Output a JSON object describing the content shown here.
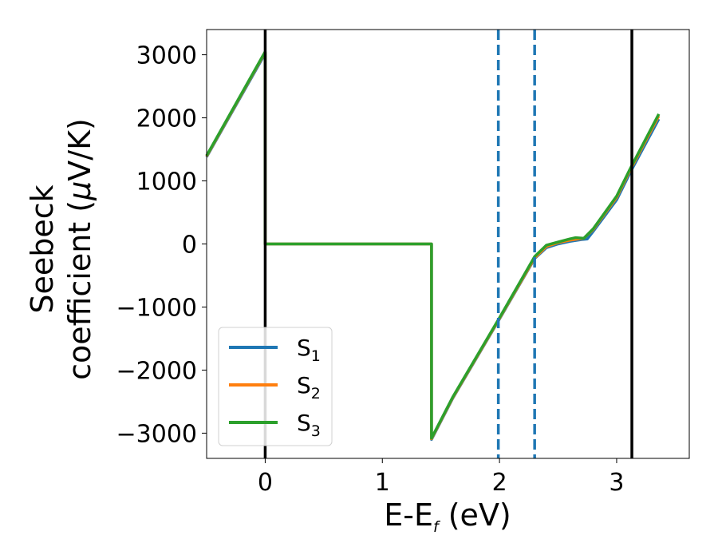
{
  "chart_data": {
    "type": "line",
    "xlabel": {
      "main": "E-E",
      "sub": "f",
      "unit": " (eV)"
    },
    "ylabel": {
      "line1": "Seebeck",
      "line2": "coefficient  (",
      "mu": "μ",
      "unit": "V/K)"
    },
    "xlim": [
      -0.5,
      3.62
    ],
    "ylim": [
      -3400,
      3400
    ],
    "xticks": [
      0,
      1,
      2,
      3
    ],
    "yticks": [
      3000,
      2000,
      1000,
      0,
      -1000,
      -2000,
      -3000
    ],
    "ytick_labels": [
      "3000",
      "2000",
      "1000",
      "0",
      "−1000",
      "−2000",
      "−3000"
    ],
    "xtick_labels": [
      "0",
      "1",
      "2",
      "3"
    ],
    "grid": false,
    "legend": "lower-left",
    "series": [
      {
        "name": "S",
        "sub": "1",
        "color": "#1f77b4",
        "x": [
          -0.5,
          0.0,
          0.0,
          1.42,
          1.42,
          1.6,
          2.0,
          2.3,
          2.4,
          2.5,
          2.6,
          2.7,
          2.75,
          2.8,
          3.0,
          3.12,
          3.36
        ],
        "y": [
          1380,
          3020,
          0,
          0,
          -3100,
          -2450,
          -1190,
          -230,
          -60,
          0,
          40,
          70,
          80,
          200,
          700,
          1150,
          1980
        ]
      },
      {
        "name": "S",
        "sub": "2",
        "color": "#ff7f0e",
        "x": [
          -0.5,
          0.0,
          0.0,
          1.42,
          1.42,
          1.6,
          2.0,
          2.3,
          2.4,
          2.5,
          2.6,
          2.65,
          2.72,
          2.8,
          3.0,
          3.12,
          3.36
        ],
        "y": [
          1390,
          3040,
          0,
          0,
          -3090,
          -2440,
          -1180,
          -220,
          -40,
          20,
          60,
          75,
          90,
          230,
          740,
          1190,
          2030
        ]
      },
      {
        "name": "S",
        "sub": "3",
        "color": "#2ca02c",
        "x": [
          -0.5,
          0.0,
          0.0,
          1.42,
          1.42,
          1.6,
          2.0,
          2.3,
          2.4,
          2.5,
          2.6,
          2.65,
          2.72,
          2.8,
          3.0,
          3.12,
          3.36
        ],
        "y": [
          1400,
          3050,
          0,
          0,
          -3080,
          -2430,
          -1170,
          -200,
          -20,
          30,
          80,
          100,
          90,
          240,
          760,
          1210,
          2060
        ]
      }
    ],
    "vlines": [
      {
        "x": 0.0,
        "color": "#000000",
        "style": "solid"
      },
      {
        "x": 3.13,
        "color": "#000000",
        "style": "solid"
      },
      {
        "x": 1.99,
        "color": "#1f77b4",
        "style": "dashed"
      },
      {
        "x": 2.3,
        "color": "#1f77b4",
        "style": "dashed"
      }
    ]
  }
}
